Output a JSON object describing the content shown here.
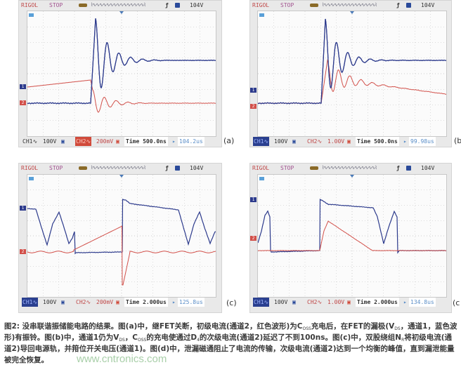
{
  "panels": [
    {
      "label": "(a)",
      "brand": "RIGOL",
      "state": "STOP",
      "edge": "ƒ",
      "trigger_level": "104V",
      "ch1": "CH1∿",
      "ch1_scale": "100V",
      "ch2": "CH2∿",
      "ch2_scale": "200mV",
      "active_channel": "CH2",
      "timebase": "Time 500.0ns",
      "offset": "104.2us",
      "channel_marker_1": "1",
      "channel_marker_2": "2",
      "trigger_marker": "T"
    },
    {
      "label": "(b",
      "brand": "RIGOL",
      "state": "STOP",
      "edge": "ƒ",
      "trigger_level": "104V",
      "ch1": "CH1∿",
      "ch1_scale": "100V",
      "ch2": "CH2∿",
      "ch2_scale": "1.00V",
      "active_channel": "CH1",
      "timebase": "Time 500.0ns",
      "offset": "99.98us",
      "channel_marker_1": "1",
      "channel_marker_2": "2",
      "trigger_marker": "T"
    },
    {
      "label": "(c)",
      "brand": "RIGOL",
      "state": "STOP",
      "edge": "ƒ",
      "trigger_level": "104V",
      "ch1": "CH1∿",
      "ch1_scale": "100V",
      "ch2": "CH2∿",
      "ch2_scale": "200mV",
      "active_channel": "CH1",
      "timebase": "Time 2.000us",
      "offset": "125.8us",
      "channel_marker_1": "1",
      "channel_marker_2": "2",
      "trigger_marker": "T"
    },
    {
      "label": "(c",
      "brand": "RIGOL",
      "state": "STOP",
      "edge": "ƒ",
      "trigger_level": "104V",
      "ch1": "CH1∿",
      "ch1_scale": "100V",
      "ch2": "CH2∿",
      "ch2_scale": "1.00V",
      "active_channel": "CH1",
      "timebase": "Time 2.000us",
      "offset": "134.8us",
      "channel_marker_1": "1",
      "channel_marker_2": "2",
      "trigger_marker": "T"
    }
  ],
  "colors": {
    "ch1": "#2c3a8c",
    "ch2": "#d2504a",
    "grid": "#bdbdbd"
  },
  "caption": [
    {
      "t": "图2: 没串联谐振储能电路的结果。图(a)中，继FET关断，初级电流(通道2，红色波形)为C"
    },
    {
      "sub": "OSS"
    },
    {
      "t": "充电后，在FET的漏极(V"
    },
    {
      "sub": "DS"
    },
    {
      "t": "，通道1，蓝色波形)有振铃。图(b)中，通道1仍为V"
    },
    {
      "sub": "DS"
    },
    {
      "t": "，C"
    },
    {
      "sub": "OSS"
    },
    {
      "t": "的充电使通过D"
    },
    {
      "sub": "4"
    },
    {
      "t": "的次级电流(通道2)延迟了不到100ns。图(c)中，双股绕组N"
    },
    {
      "sub": "R"
    },
    {
      "t": "将初级电流(通道2)导回电源轨，并箝位开关电压(通道1)。图(d)中，泄漏磁通阻止了电流的传输，次级电流(通道2)达到一个均衡的峰值，直到漏泄能量被完全恢复。"
    }
  ],
  "watermark": "www.cntronics.com"
}
